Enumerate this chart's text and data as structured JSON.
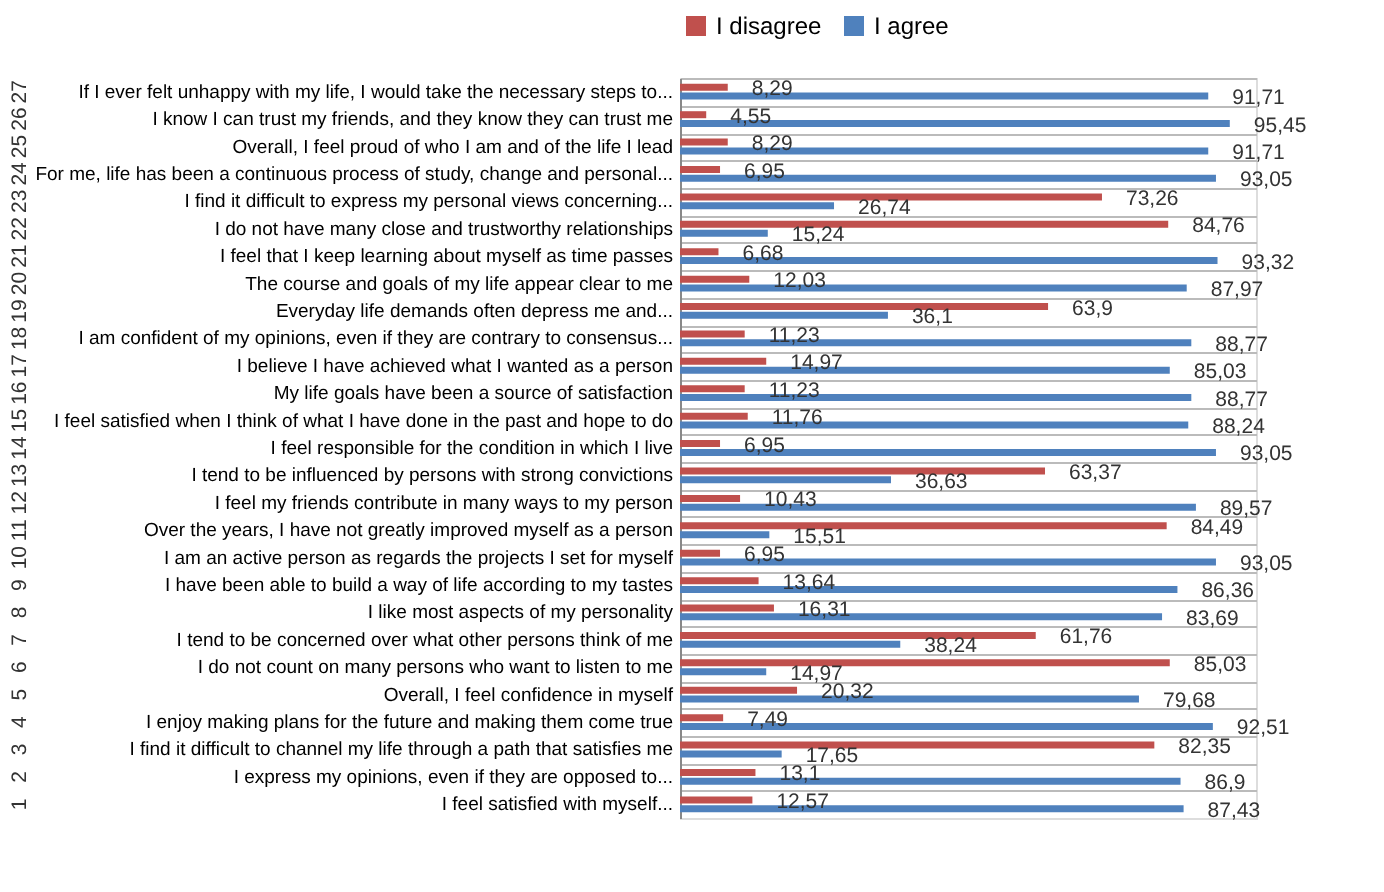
{
  "chart_data": {
    "type": "bar",
    "orientation": "horizontal",
    "legend": "top",
    "xlim": [
      0,
      100
    ],
    "tick_labels": "y",
    "categories": [
      "If I ever felt unhappy with my life, I would take the necessary steps to...",
      "I know I can trust my friends, and they know they can trust me",
      "Overall, I feel proud of who I am and of the life I lead",
      "For me, life has been a continuous process of study, change and personal...",
      "I find it difficult to express my personal views concerning...",
      "I do not have many close  and trustworthy relationships",
      "I feel that I keep learning about myself as time passes",
      "The course and goals of my life appear clear to me",
      "Everyday life demands often depress me and...",
      "I am confident of my opinions, even if they are contrary to consensus...",
      "I believe I have achieved what I wanted as a person",
      "My life goals have been a source of satisfaction",
      "I feel satisfied  when I think of what I have done in the past and hope to do",
      "I feel responsible  for the condition in which I live",
      "I tend to be influenced  by persons with strong convictions",
      "I feel my friends contribute in many ways to my person",
      "Over the years, I have not greatly improved myself as a person",
      "I am an active person as regards the projects I set for myself",
      "I have been able to build a way of life according to my tastes",
      "I like most aspects of my personality",
      "I tend to be concerned over what other persons think of me",
      "I do not count on many persons who want to listen to me",
      "Overall, I feel confidence in myself",
      "I enjoy making plans for the future and making them come true",
      "I find it difficult to channel my life through a path that satisfies  me",
      "I express my opinions, even if they are opposed to...",
      "I feel satisfied  with myself..."
    ],
    "annotations": [
      "27",
      "26",
      "25",
      "24",
      "23",
      "22",
      "21",
      "20",
      "19",
      "18",
      "17",
      "16",
      "15",
      "14",
      "13",
      "12",
      "11",
      "10",
      "9",
      "8",
      "7",
      "6",
      "5",
      "4",
      "3",
      "2",
      "1"
    ],
    "series": [
      {
        "name": "I disagree",
        "color": "#c0504d",
        "values": [
          8.29,
          4.55,
          8.29,
          6.95,
          73.26,
          84.76,
          6.68,
          12.03,
          63.9,
          11.23,
          14.97,
          11.23,
          11.76,
          6.95,
          63.37,
          10.43,
          84.49,
          6.95,
          13.64,
          16.31,
          61.76,
          85.03,
          20.32,
          7.49,
          82.35,
          13.1,
          12.57
        ],
        "value_labels": [
          "8,29",
          "4,55",
          "8,29",
          "6,95",
          "73,26",
          "84,76",
          "6,68",
          "12,03",
          "63,9",
          "11,23",
          "14,97",
          "11,23",
          "11,76",
          "6,95",
          "63,37",
          "10,43",
          "84,49",
          "6,95",
          "13,64",
          "16,31",
          "61,76",
          "85,03",
          "20,32",
          "7,49",
          "82,35",
          "13,1",
          "12,57"
        ]
      },
      {
        "name": "I agree",
        "color": "#4f81bd",
        "values": [
          91.71,
          95.45,
          91.71,
          93.05,
          26.74,
          15.24,
          93.32,
          87.97,
          36.1,
          88.77,
          85.03,
          88.77,
          88.24,
          93.05,
          36.63,
          89.57,
          15.51,
          93.05,
          86.36,
          83.69,
          38.24,
          14.97,
          79.68,
          92.51,
          17.65,
          86.9,
          87.43
        ],
        "value_labels": [
          "91,71",
          "95,45",
          "91,71",
          "93,05",
          "26,74",
          "15,24",
          "93,32",
          "87,97",
          "36,1",
          "88,77",
          "85,03",
          "88,77",
          "88,24",
          "93,05",
          "36,63",
          "89,57",
          "15,51",
          "93,05",
          "86,36",
          "83,69",
          "38,24",
          "14,97",
          "79,68",
          "92,51",
          "17,65",
          "86,9",
          "87,43"
        ]
      }
    ]
  }
}
